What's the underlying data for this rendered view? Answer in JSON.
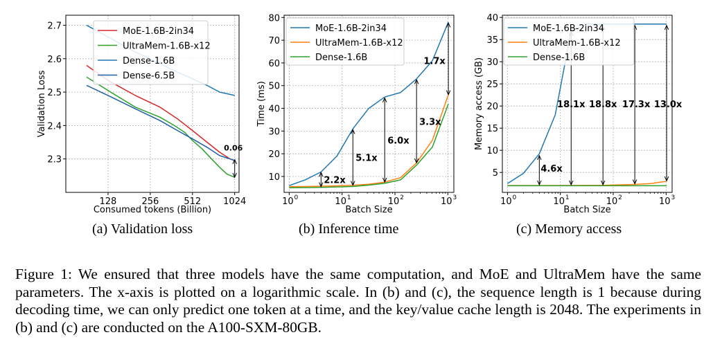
{
  "chart_data": [
    {
      "type": "line",
      "ylabel": "Validation Loss",
      "xlabel": "Consumed tokens (Billion)",
      "xscale": "log2",
      "xlim": [
        64,
        1100
      ],
      "ylim": [
        2.2,
        2.73
      ],
      "xticks": [
        128,
        256,
        512,
        1024
      ],
      "xtick_labels": [
        "128",
        "256",
        "512",
        "1024"
      ],
      "yticks": [
        2.3,
        2.4,
        2.5,
        2.6,
        2.7
      ],
      "ytick_labels": [
        "2.3",
        "2.4",
        "2.5",
        "2.6",
        "2.7"
      ],
      "grid": true,
      "legend": "top-right",
      "series": [
        {
          "name": "MoE-1.6B-2in34",
          "color": "#d62728",
          "x": [
            90,
            128,
            200,
            300,
            400,
            512,
            650,
            800,
            950,
            1024
          ],
          "y": [
            2.58,
            2.535,
            2.49,
            2.455,
            2.42,
            2.385,
            2.35,
            2.32,
            2.3,
            2.295
          ]
        },
        {
          "name": "UltraMem-1.6B-x12",
          "color": "#2ca02c",
          "x": [
            90,
            128,
            200,
            300,
            380,
            450,
            512,
            600,
            700,
            800,
            900,
            1024
          ],
          "y": [
            2.545,
            2.505,
            2.455,
            2.425,
            2.4,
            2.38,
            2.355,
            2.33,
            2.3,
            2.275,
            2.255,
            2.245
          ]
        },
        {
          "name": "Dense-1.6B",
          "color": "#1f77b4",
          "x": [
            90,
            128,
            200,
            300,
            400,
            512,
            650,
            800,
            1024
          ],
          "y": [
            2.7,
            2.665,
            2.62,
            2.585,
            2.56,
            2.54,
            2.52,
            2.5,
            2.49
          ]
        },
        {
          "name": "Dense-6.5B",
          "color": "#1f5fa8",
          "x": [
            90,
            128,
            200,
            300,
            400,
            512,
            650,
            800,
            950,
            1024
          ],
          "y": [
            2.52,
            2.49,
            2.45,
            2.415,
            2.385,
            2.36,
            2.335,
            2.31,
            2.3,
            2.295
          ]
        }
      ],
      "annotations": [
        {
          "text": "0.06",
          "x": 1024,
          "y_from": 2.298,
          "y_to": 2.245
        }
      ],
      "panel_caption": "(a) Validation loss"
    },
    {
      "type": "line",
      "ylabel": "Time (ms)",
      "xlabel": "Batch Size",
      "xscale": "log10",
      "xlim": [
        0.8,
        1300
      ],
      "ylim": [
        3,
        81
      ],
      "xticks": [
        1,
        10,
        100,
        1000
      ],
      "xtick_labels": [
        "10",
        "10",
        "10",
        "10"
      ],
      "xtick_exponents": [
        "0",
        "1",
        "2",
        "3"
      ],
      "yticks": [
        10,
        20,
        30,
        40,
        50,
        60,
        70,
        80
      ],
      "ytick_labels": [
        "10",
        "20",
        "30",
        "40",
        "50",
        "60",
        "70",
        "80"
      ],
      "grid": true,
      "legend": "top-left",
      "series": [
        {
          "name": "MoE-1.6B-2in34",
          "color": "#1f77b4",
          "x": [
            1,
            2,
            4,
            8,
            16,
            32,
            64,
            128,
            256,
            512,
            1024
          ],
          "y": [
            6,
            8.5,
            12,
            19,
            31,
            40,
            45,
            47,
            53,
            61,
            78
          ]
        },
        {
          "name": "UltraMem-1.6B-x12",
          "color": "#ff7f0e",
          "x": [
            1,
            2,
            4,
            8,
            16,
            32,
            64,
            128,
            256,
            512,
            1024
          ],
          "y": [
            5.5,
            5.6,
            5.7,
            5.9,
            6.1,
            6.6,
            7.5,
            9.5,
            16,
            26,
            46
          ]
        },
        {
          "name": "Dense-1.6B",
          "color": "#2ca02c",
          "x": [
            1,
            2,
            4,
            8,
            16,
            32,
            64,
            128,
            256,
            512,
            1024
          ],
          "y": [
            5,
            5.1,
            5.2,
            5.4,
            5.6,
            6.2,
            7,
            8.5,
            15,
            23,
            42
          ]
        }
      ],
      "annotations": [
        {
          "text": "2.2x",
          "x": 4,
          "y_from": 5.5,
          "y_to": 11.8
        },
        {
          "text": "5.1x",
          "x": 16,
          "y_from": 6.1,
          "y_to": 30.6
        },
        {
          "text": "6.0x",
          "x": 64,
          "y_from": 7.5,
          "y_to": 44.6
        },
        {
          "text": "3.3x",
          "x": 256,
          "y_from": 16,
          "y_to": 52.6
        },
        {
          "text": "1.7x",
          "x": 1024,
          "y_from": 46,
          "y_to": 77.6
        }
      ],
      "panel_caption": "(b) Inference time"
    },
    {
      "type": "line",
      "ylabel": "Memory access (GB)",
      "xlabel": "Batch Size",
      "xscale": "log10",
      "xlim": [
        0.8,
        1300
      ],
      "ylim": [
        0.5,
        40.5
      ],
      "xticks": [
        1,
        10,
        100,
        1000
      ],
      "xtick_labels": [
        "10",
        "10",
        "10",
        "10"
      ],
      "xtick_exponents": [
        "0",
        "1",
        "2",
        "3"
      ],
      "yticks": [
        5,
        10,
        15,
        20,
        25,
        30,
        35,
        40
      ],
      "ytick_labels": [
        "5",
        "10",
        "15",
        "20",
        "25",
        "30",
        "35",
        "40"
      ],
      "grid": true,
      "legend": "top-right",
      "series": [
        {
          "name": "MoE-1.6B-2in34",
          "color": "#1f77b4",
          "x": [
            1,
            2,
            4,
            8,
            16,
            32,
            64,
            128,
            256,
            512,
            1024
          ],
          "y": [
            2.5,
            4.8,
            9.2,
            18,
            37,
            38.5,
            38.5,
            38.5,
            38.5,
            38.5,
            38.5
          ]
        },
        {
          "name": "UltraMem-1.6B-x12",
          "color": "#ff7f0e",
          "x": [
            1,
            4,
            16,
            64,
            128,
            256,
            512,
            1024
          ],
          "y": [
            2.05,
            2.05,
            2.06,
            2.1,
            2.2,
            2.3,
            2.5,
            3.0
          ]
        },
        {
          "name": "Dense-1.6B",
          "color": "#2ca02c",
          "x": [
            1,
            4,
            16,
            64,
            256,
            1024
          ],
          "y": [
            2.0,
            2.0,
            2.0,
            2.0,
            2.0,
            2.0
          ]
        }
      ],
      "annotations": [
        {
          "text": "4.6x",
          "x": 4,
          "y_from": 2.2,
          "y_to": 8.8
        },
        {
          "text": "18.1x",
          "x": 16,
          "y_from": 2.2,
          "y_to": 36.8
        },
        {
          "text": "18.8x",
          "x": 64,
          "y_from": 2.2,
          "y_to": 38.2
        },
        {
          "text": "17.3x",
          "x": 256,
          "y_from": 2.4,
          "y_to": 38.2
        },
        {
          "text": "13.0x",
          "x": 1024,
          "y_from": 3.1,
          "y_to": 38.2
        }
      ],
      "panel_caption": "(c) Memory access"
    }
  ],
  "caption": "Figure 1: We ensured that three models have the same computation, and MoE and UltraMem have the same parameters. The x-axis is plotted on a logarithmic scale. In (b) and (c), the sequence length is 1 because during decoding time, we can only predict one token at a time, and the key/value cache length is 2048. The experiments in (b) and (c) are conducted on the A100-SXM-80GB."
}
